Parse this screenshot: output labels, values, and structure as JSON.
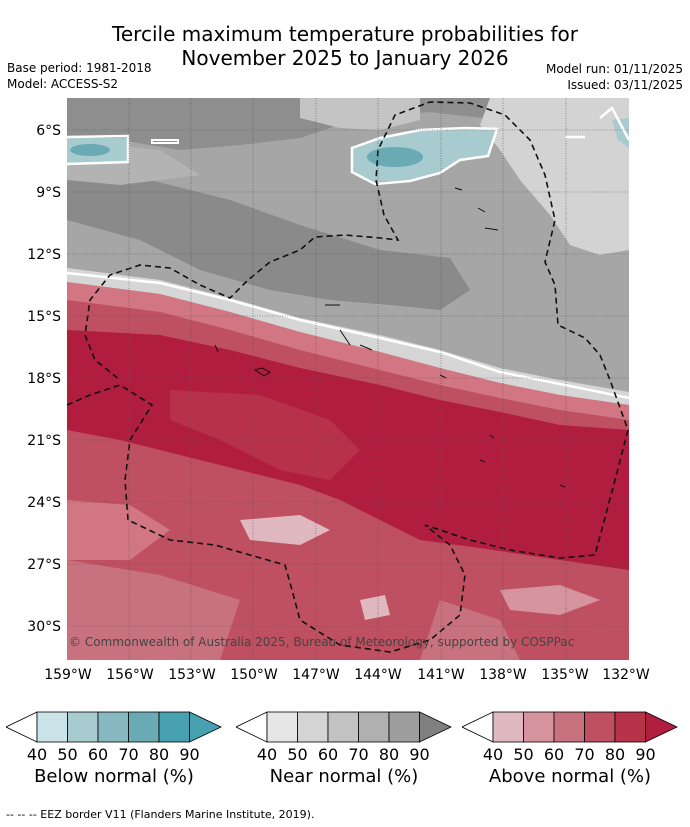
{
  "title": {
    "line1": "Tercile maximum temperature probabilities for",
    "line2": "November 2025 to January 2026"
  },
  "meta": {
    "base_period": "Base period: 1981-2018",
    "model": "Model: ACCESS-S2",
    "model_run": "Model run: 01/11/2025",
    "issued": "Issued: 03/11/2025"
  },
  "map": {
    "lat_labels": [
      "6°S",
      "9°S",
      "12°S",
      "15°S",
      "18°S",
      "21°S",
      "24°S",
      "27°S",
      "30°S"
    ],
    "lon_labels": [
      "159°W",
      "156°W",
      "153°W",
      "150°W",
      "147°W",
      "144°W",
      "141°W",
      "138°W",
      "135°W",
      "132°W"
    ],
    "copyright": "© Commonwealth of Australia 2025, Bureau of Meteorology, supported by COSPPac"
  },
  "legends": [
    {
      "label": "Below normal (%)",
      "ticks": [
        "40",
        "50",
        "60",
        "70",
        "80",
        "90"
      ],
      "colors": [
        "#ffffff",
        "#c9e3e8",
        "#a8cbd0",
        "#88b8c0",
        "#6aaab5",
        "#48a1b0"
      ]
    },
    {
      "label": "Near normal (%)",
      "ticks": [
        "40",
        "50",
        "60",
        "70",
        "80",
        "90"
      ],
      "colors": [
        "#ffffff",
        "#e6e6e6",
        "#d4d4d4",
        "#c2c2c2",
        "#b0b0b0",
        "#9e9e9e",
        "#808080"
      ]
    },
    {
      "label": "Above normal (%)",
      "ticks": [
        "40",
        "50",
        "60",
        "70",
        "80",
        "90"
      ],
      "colors": [
        "#ffffff",
        "#e0b8bf",
        "#d5949e",
        "#c9727f",
        "#be5061",
        "#b6334a",
        "#b01d3f"
      ]
    }
  ],
  "footnote": "--  --  -- EEZ border V11 (Flanders Marine Institute, 2019)."
}
